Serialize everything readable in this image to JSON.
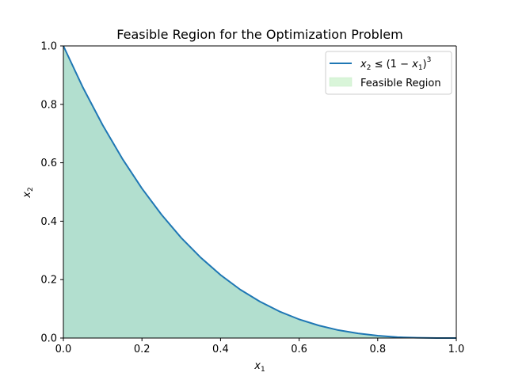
{
  "chart_data": {
    "type": "area",
    "title": "Feasible Region for the Optimization Problem",
    "xlabel": "x1",
    "ylabel": "x2",
    "xlim": [
      0.0,
      1.0
    ],
    "ylim": [
      0.0,
      1.0
    ],
    "xticks": [
      "0.0",
      "0.2",
      "0.4",
      "0.6",
      "0.8",
      "1.0"
    ],
    "yticks": [
      "0.0",
      "0.2",
      "0.4",
      "0.6",
      "0.8",
      "1.0"
    ],
    "grid": false,
    "legend_position": "upper right",
    "series": [
      {
        "name": "x2 ≤ (1 − x1)^3",
        "kind": "line",
        "color": "#1f77b4",
        "x": [
          0.0,
          0.05,
          0.1,
          0.15,
          0.2,
          0.25,
          0.3,
          0.35,
          0.4,
          0.45,
          0.5,
          0.55,
          0.6,
          0.65,
          0.7,
          0.75,
          0.8,
          0.85,
          0.9,
          0.95,
          1.0
        ],
        "y": [
          1.0,
          0.857,
          0.729,
          0.614,
          0.512,
          0.422,
          0.343,
          0.275,
          0.216,
          0.166,
          0.125,
          0.091,
          0.064,
          0.043,
          0.027,
          0.016,
          0.008,
          0.003,
          0.001,
          0.0,
          0.0
        ]
      },
      {
        "name": "Feasible Region",
        "kind": "area",
        "color": "#90ee90",
        "x": [
          0.0,
          0.05,
          0.1,
          0.15,
          0.2,
          0.25,
          0.3,
          0.35,
          0.4,
          0.45,
          0.5,
          0.55,
          0.6,
          0.65,
          0.7,
          0.75,
          0.8,
          0.85,
          0.9,
          0.95,
          1.0
        ],
        "y": [
          1.0,
          0.857,
          0.729,
          0.614,
          0.512,
          0.422,
          0.343,
          0.275,
          0.216,
          0.166,
          0.125,
          0.091,
          0.064,
          0.043,
          0.027,
          0.016,
          0.008,
          0.003,
          0.001,
          0.0,
          0.0
        ]
      }
    ],
    "legend": {
      "line_label": {
        "lhs": "x",
        "lhs_sub": "2",
        "rel": " ≤ (1 − ",
        "var": "x",
        "var_sub": "1",
        "close": ")",
        "power": "3"
      },
      "area_label": "Feasible Region"
    },
    "colors": {
      "line": "#1f77b4",
      "region_fill": "#b2dfcf",
      "legend_area_swatch": "#d9f5d9"
    }
  }
}
